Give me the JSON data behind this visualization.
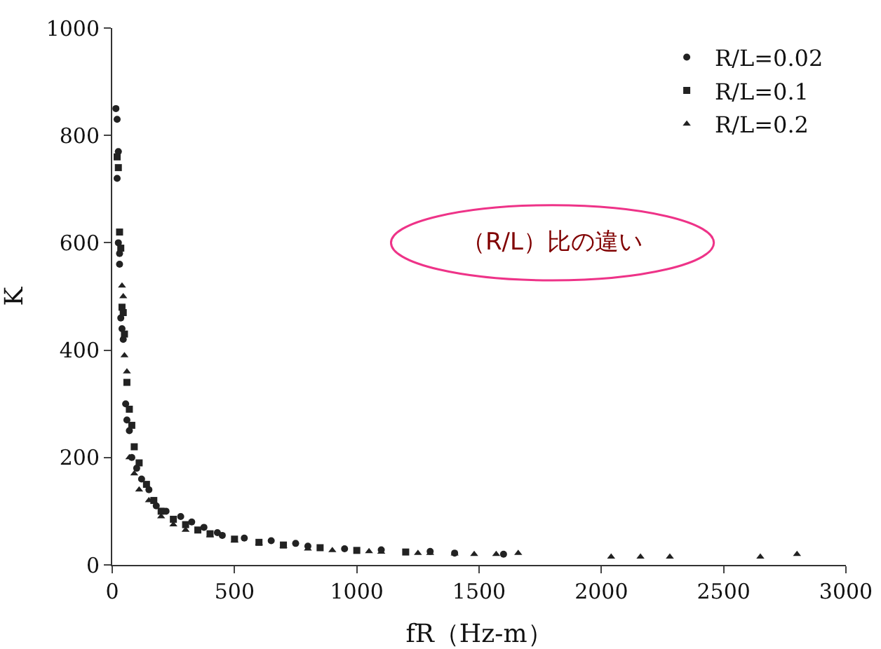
{
  "chart_data": {
    "type": "scatter",
    "xlabel": "fR（Hz-m）",
    "ylabel": "K",
    "xlim": [
      0,
      3000
    ],
    "ylim": [
      0,
      1000
    ],
    "xticks": [
      0,
      500,
      1000,
      1500,
      2000,
      2500,
      3000
    ],
    "yticks": [
      0,
      200,
      400,
      600,
      800,
      1000
    ],
    "grid": false,
    "legend": "top right",
    "annotations": [
      "（R/L）比の違い"
    ],
    "series": [
      {
        "name": "R/L=0.02",
        "color": "#222222",
        "marker": "circle",
        "x": [
          15,
          20,
          25,
          20,
          25,
          30,
          30,
          35,
          40,
          45,
          55,
          60,
          70,
          80,
          100,
          120,
          150,
          180,
          220,
          280,
          325,
          375,
          430,
          450,
          540,
          650,
          750,
          800,
          950,
          1100,
          1300,
          1400,
          1600
        ],
        "values": [
          850,
          830,
          770,
          720,
          600,
          580,
          560,
          460,
          440,
          420,
          300,
          270,
          250,
          200,
          180,
          160,
          140,
          110,
          100,
          90,
          80,
          70,
          60,
          55,
          50,
          45,
          40,
          35,
          30,
          28,
          25,
          22,
          20
        ]
      },
      {
        "name": "R/L=0.1",
        "color": "#222222",
        "marker": "square",
        "x": [
          20,
          25,
          30,
          35,
          40,
          45,
          50,
          60,
          70,
          80,
          90,
          110,
          140,
          170,
          200,
          250,
          300,
          350,
          400,
          500,
          600,
          700,
          850,
          1000,
          1200
        ],
        "values": [
          760,
          740,
          620,
          590,
          480,
          470,
          430,
          340,
          290,
          260,
          220,
          190,
          150,
          120,
          100,
          85,
          75,
          65,
          58,
          48,
          42,
          37,
          32,
          27,
          24
        ]
      },
      {
        "name": "R/L=0.2",
        "color": "#222222",
        "marker": "triangle",
        "x": [
          40,
          45,
          50,
          60,
          70,
          90,
          110,
          150,
          200,
          250,
          300,
          400,
          500,
          600,
          700,
          800,
          900,
          1050,
          1100,
          1250,
          1300,
          1400,
          1480,
          1570,
          1660,
          2040,
          2160,
          2280,
          2650,
          2800
        ],
        "values": [
          520,
          500,
          390,
          360,
          200,
          170,
          140,
          120,
          90,
          75,
          65,
          55,
          45,
          40,
          35,
          30,
          27,
          25,
          24,
          22,
          22,
          21,
          20,
          20,
          22,
          15,
          15,
          15,
          15,
          20
        ]
      }
    ]
  }
}
